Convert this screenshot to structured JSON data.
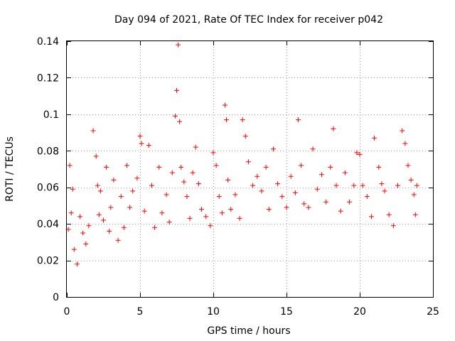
{
  "chart_data": {
    "type": "scatter",
    "title": "Day 094 of 2021, Rate Of TEC Index for receiver p042",
    "xlabel": "GPS time / hours",
    "ylabel": "ROTI / TECUs",
    "xlim": [
      0,
      25
    ],
    "ylim": [
      0,
      0.14
    ],
    "x_ticks": [
      0,
      5,
      10,
      15,
      20,
      25
    ],
    "x_tick_labels": [
      "0",
      "5",
      "10",
      "15",
      "20",
      "25"
    ],
    "y_ticks": [
      0,
      0.02,
      0.04,
      0.06,
      0.08,
      0.1,
      0.12,
      0.14
    ],
    "y_tick_labels": [
      "0",
      "0.02",
      "0.04",
      "0.06",
      "0.08",
      "0.1",
      "0.12",
      "0.14"
    ],
    "grid": true,
    "marker": "+",
    "marker_color": "#ff0000",
    "series": [
      {
        "name": "ROTI",
        "x": [
          0.1,
          0.2,
          0.3,
          0.4,
          0.5,
          0.7,
          0.9,
          1.1,
          1.3,
          1.5,
          1.8,
          2.0,
          2.1,
          2.2,
          2.3,
          2.5,
          2.7,
          2.9,
          3.0,
          3.2,
          3.5,
          3.7,
          3.9,
          4.1,
          4.3,
          4.5,
          4.8,
          5.0,
          5.1,
          5.3,
          5.6,
          5.8,
          6.0,
          6.3,
          6.5,
          6.8,
          7.0,
          7.2,
          7.4,
          7.5,
          7.6,
          7.7,
          7.8,
          8.0,
          8.2,
          8.4,
          8.6,
          8.8,
          9.0,
          9.2,
          9.5,
          9.8,
          10.0,
          10.2,
          10.4,
          10.6,
          10.8,
          10.9,
          11.0,
          11.2,
          11.5,
          11.8,
          12.0,
          12.2,
          12.4,
          12.7,
          13.0,
          13.3,
          13.6,
          13.8,
          14.1,
          14.4,
          14.7,
          15.0,
          15.3,
          15.6,
          15.8,
          16.0,
          16.2,
          16.5,
          16.8,
          17.1,
          17.4,
          17.7,
          18.0,
          18.2,
          18.4,
          18.7,
          19.0,
          19.3,
          19.6,
          19.8,
          20.0,
          20.2,
          20.5,
          20.8,
          21.0,
          21.3,
          21.5,
          21.7,
          22.0,
          22.3,
          22.6,
          22.9,
          23.1,
          23.3,
          23.5,
          23.7,
          23.8,
          23.9
        ],
        "y": [
          0.037,
          0.072,
          0.046,
          0.059,
          0.026,
          0.018,
          0.044,
          0.035,
          0.029,
          0.039,
          0.091,
          0.077,
          0.061,
          0.045,
          0.058,
          0.042,
          0.071,
          0.036,
          0.049,
          0.064,
          0.031,
          0.055,
          0.038,
          0.072,
          0.049,
          0.058,
          0.065,
          0.088,
          0.084,
          0.047,
          0.083,
          0.061,
          0.038,
          0.071,
          0.046,
          0.056,
          0.041,
          0.068,
          0.099,
          0.113,
          0.138,
          0.096,
          0.071,
          0.063,
          0.055,
          0.043,
          0.068,
          0.082,
          0.062,
          0.048,
          0.044,
          0.039,
          0.079,
          0.072,
          0.055,
          0.046,
          0.105,
          0.097,
          0.064,
          0.048,
          0.056,
          0.043,
          0.097,
          0.088,
          0.074,
          0.061,
          0.066,
          0.058,
          0.071,
          0.048,
          0.081,
          0.062,
          0.055,
          0.049,
          0.066,
          0.057,
          0.097,
          0.072,
          0.051,
          0.049,
          0.081,
          0.059,
          0.067,
          0.052,
          0.071,
          0.092,
          0.061,
          0.047,
          0.068,
          0.052,
          0.061,
          0.079,
          0.078,
          0.061,
          0.055,
          0.044,
          0.087,
          0.071,
          0.062,
          0.058,
          0.045,
          0.039,
          0.061,
          0.091,
          0.084,
          0.072,
          0.064,
          0.056,
          0.045,
          0.061
        ]
      }
    ]
  }
}
